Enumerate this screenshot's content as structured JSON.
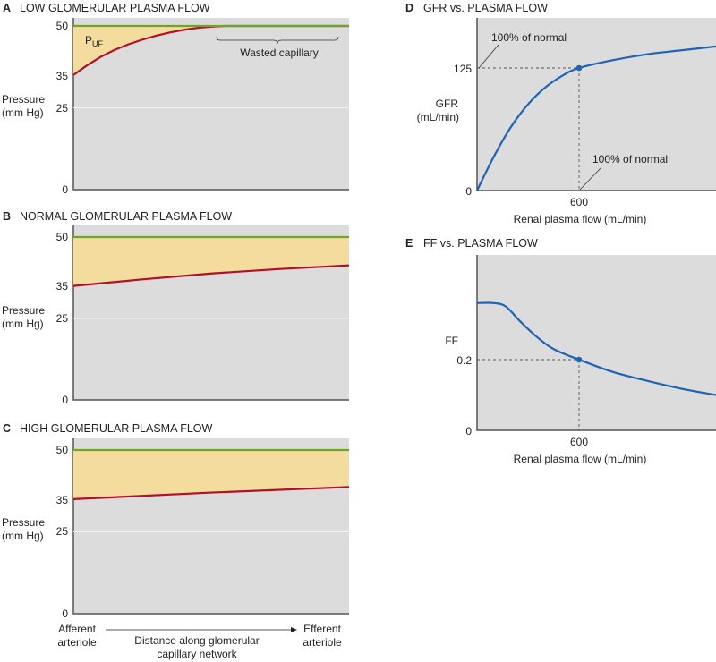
{
  "colors": {
    "plot_bg": "#dcdcdc",
    "filtration_fill": "#f3dc9e",
    "capillary_pressure": "#6aa52e",
    "oncotic_pressure": "#b0102a",
    "curve": "#1f63b5",
    "grid": "#f4f4f4"
  },
  "chart_data": [
    {
      "id": "A",
      "type": "area",
      "letter": "A",
      "title": "LOW GLOMERULAR PLASMA FLOW",
      "ylabel": [
        "Pressure",
        "(mm Hg)"
      ],
      "yticks": [
        "50",
        "35",
        "25",
        "0"
      ],
      "ylim": [
        0,
        50
      ],
      "x": [
        0,
        0.05,
        0.1,
        0.15,
        0.2,
        0.25,
        0.3,
        0.35,
        0.4,
        0.45,
        0.5,
        0.55,
        1
      ],
      "series": [
        {
          "key": "capillary",
          "values": [
            50,
            50,
            50,
            50,
            50,
            50,
            50,
            50,
            50,
            50,
            50,
            50,
            50
          ]
        },
        {
          "key": "oncotic",
          "values": [
            35,
            38,
            40.6,
            42.7,
            44.4,
            45.8,
            47,
            48,
            48.8,
            49.4,
            49.8,
            50,
            50
          ]
        }
      ],
      "annotations": {
        "puf": "P",
        "puf_sub": "UF",
        "wasted": "Wasted capillary"
      }
    },
    {
      "id": "B",
      "type": "area",
      "letter": "B",
      "title": "NORMAL GLOMERULAR PLASMA FLOW",
      "ylabel": [
        "Pressure",
        "(mm Hg)"
      ],
      "yticks": [
        "50",
        "35",
        "25",
        "0"
      ],
      "ylim": [
        0,
        50
      ],
      "x": [
        0,
        0.25,
        0.5,
        0.75,
        1
      ],
      "series": [
        {
          "key": "capillary",
          "values": [
            50,
            50,
            50,
            50,
            50
          ]
        },
        {
          "key": "oncotic",
          "values": [
            35,
            37,
            38.8,
            40.2,
            41.3
          ]
        }
      ]
    },
    {
      "id": "C",
      "type": "area",
      "letter": "C",
      "title": "HIGH GLOMERULAR PLASMA FLOW",
      "ylabel": [
        "Pressure",
        "(mm Hg)"
      ],
      "yticks": [
        "50",
        "35",
        "25",
        "0"
      ],
      "ylim": [
        0,
        50
      ],
      "x": [
        0,
        0.5,
        1
      ],
      "series": [
        {
          "key": "capillary",
          "values": [
            50,
            50,
            50
          ]
        },
        {
          "key": "oncotic",
          "values": [
            35,
            37,
            38.7
          ]
        }
      ],
      "xlabel": {
        "left": [
          "Afferent",
          "arteriole"
        ],
        "center": [
          "Distance along glomerular",
          "capillary network"
        ],
        "right": [
          "Efferent",
          "arteriole"
        ]
      }
    },
    {
      "id": "D",
      "type": "line",
      "letter": "D",
      "title": "GFR vs. PLASMA FLOW",
      "ylabel": [
        "GFR",
        "(mL/min)"
      ],
      "xlabel": "Renal plasma flow (mL/min)",
      "yticks": [
        "125",
        "0"
      ],
      "xticks": [
        "600"
      ],
      "xlim": [
        0,
        1405
      ],
      "ylim": [
        0,
        175
      ],
      "x": [
        0,
        100,
        200,
        300,
        400,
        500,
        600,
        800,
        1000,
        1200,
        1405
      ],
      "values": [
        0,
        35,
        65,
        88,
        105,
        117,
        125,
        133,
        139,
        143,
        147
      ],
      "marker": {
        "x": 600,
        "y": 125
      },
      "annotations": [
        "100% of normal",
        "100% of normal"
      ]
    },
    {
      "id": "E",
      "type": "line",
      "letter": "E",
      "title": "FF vs. PLASMA FLOW",
      "ylabel": [
        "FF"
      ],
      "xlabel": "Renal plasma flow (mL/min)",
      "yticks": [
        "0.2",
        "0"
      ],
      "xticks": [
        "600"
      ],
      "xlim": [
        0,
        1405
      ],
      "ylim": [
        0,
        0.5
      ],
      "x": [
        0,
        100,
        170,
        250,
        350,
        450,
        600,
        800,
        1000,
        1200,
        1405
      ],
      "values": [
        0.36,
        0.36,
        0.35,
        0.31,
        0.265,
        0.23,
        0.2,
        0.165,
        0.14,
        0.118,
        0.1
      ],
      "marker": {
        "x": 600,
        "y": 0.2
      }
    }
  ]
}
